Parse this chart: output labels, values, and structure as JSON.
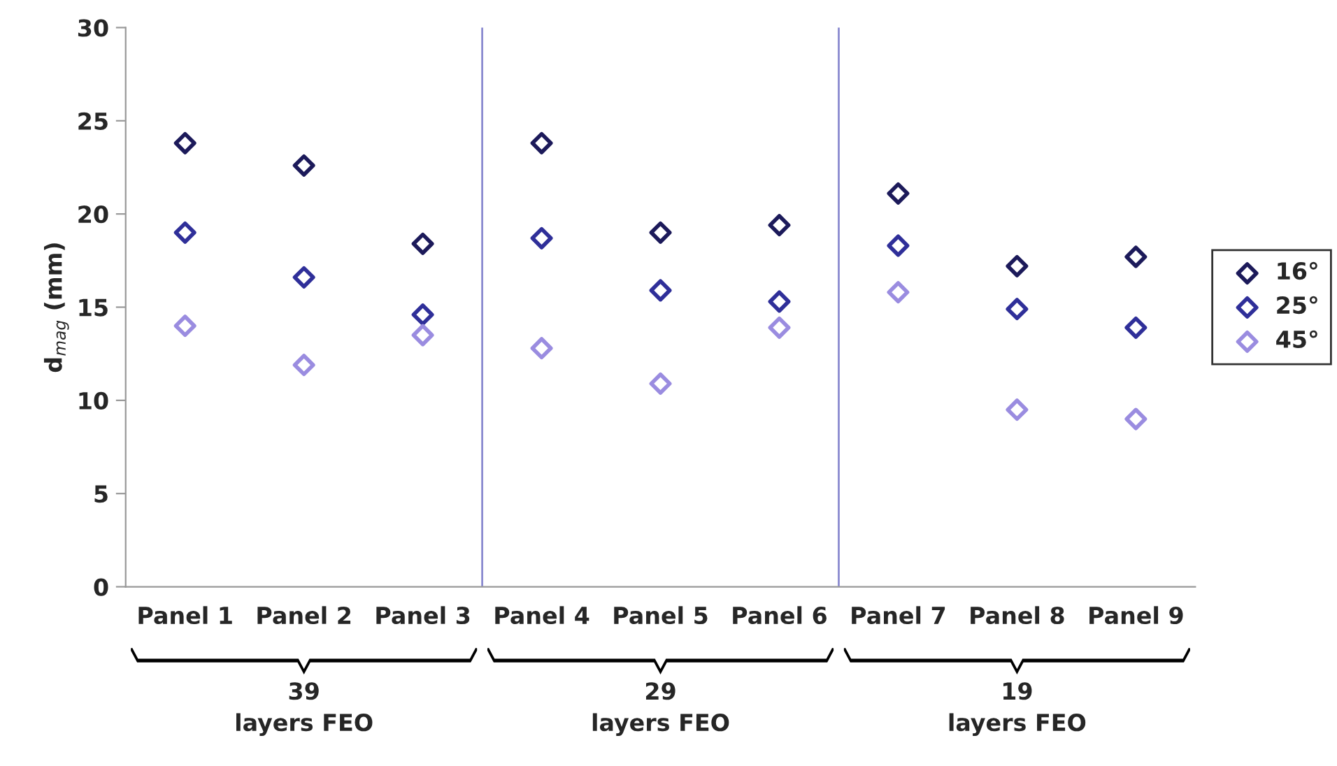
{
  "chart_data": {
    "type": "scatter",
    "ylabel": "d$_{mag}$ (mm)",
    "categories": [
      "Panel 1",
      "Panel 2",
      "Panel 3",
      "Panel 4",
      "Panel 5",
      "Panel 6",
      "Panel 7",
      "Panel 8",
      "Panel 9"
    ],
    "series": [
      {
        "name": "16°",
        "color": "#1c1a5a",
        "values": [
          23.8,
          22.6,
          18.4,
          23.8,
          19.0,
          19.4,
          21.1,
          17.2,
          17.7
        ]
      },
      {
        "name": "25°",
        "color": "#2f2f99",
        "values": [
          19.0,
          16.6,
          14.6,
          18.7,
          15.9,
          15.3,
          18.3,
          14.9,
          13.9
        ]
      },
      {
        "name": "45°",
        "color": "#9a8ce0",
        "values": [
          14.0,
          11.9,
          13.5,
          12.8,
          10.9,
          13.9,
          15.8,
          9.5,
          9.0
        ]
      }
    ],
    "ylim": [
      0,
      30
    ],
    "yticks": [
      0,
      5,
      10,
      15,
      20,
      25,
      30
    ],
    "marker": "diamond",
    "grid": false,
    "legend": "right",
    "annotations": [
      "39\nlayers FEO",
      "29\nlayers FEO",
      "19\nlayers FEO"
    ]
  }
}
